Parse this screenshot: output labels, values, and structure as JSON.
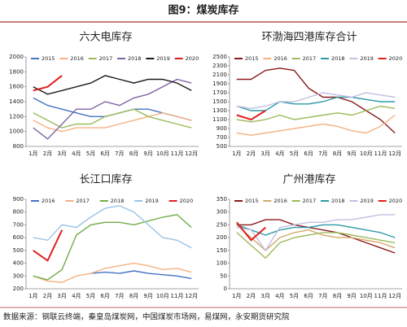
{
  "title": "图9：煤炭库存",
  "source": "数据来源：钢联云终端，秦皇岛煤炭网，中国煤炭市场网，易煤网，永安期货研究院",
  "chart_data": [
    {
      "type": "line",
      "title": "六大电库存",
      "categories": [
        "1月",
        "2月",
        "3月",
        "4月",
        "5月",
        "6月",
        "7月",
        "8月",
        "9月",
        "10月",
        "11月",
        "12月"
      ],
      "ylim": [
        800,
        2000
      ],
      "yticks": [
        800,
        1000,
        1200,
        1400,
        1600,
        1800,
        2000
      ],
      "series": [
        {
          "name": "2015",
          "color": "#4472c4",
          "values": [
            1450,
            1350,
            1300,
            1250,
            1200,
            1200,
            1250,
            1300,
            1300,
            1250,
            1200,
            1150
          ]
        },
        {
          "name": "2016",
          "color": "#f4b183",
          "values": [
            1150,
            1050,
            1000,
            1050,
            1050,
            1050,
            1100,
            1150,
            1200,
            1250,
            1200,
            1150
          ]
        },
        {
          "name": "2017",
          "color": "#9bbb59",
          "values": [
            1250,
            1150,
            1050,
            1100,
            1100,
            1200,
            1250,
            1300,
            1200,
            1150,
            1100,
            1050
          ]
        },
        {
          "name": "2018",
          "color": "#8064a2",
          "values": [
            1050,
            900,
            1100,
            1300,
            1300,
            1400,
            1350,
            1450,
            1500,
            1600,
            1700,
            1650
          ]
        },
        {
          "name": "2019",
          "color": "#1a1a1a",
          "values": [
            1600,
            1500,
            1550,
            1600,
            1650,
            1750,
            1700,
            1650,
            1700,
            1700,
            1650,
            1550
          ]
        },
        {
          "name": "2020",
          "color": "#e02020",
          "values": [
            1550,
            1600,
            1750,
            null,
            null,
            null,
            null,
            null,
            null,
            null,
            null,
            null
          ]
        }
      ]
    },
    {
      "type": "line",
      "title": "环渤海四港库存合计",
      "categories": [
        "1月",
        "2月",
        "3月",
        "4月",
        "5月",
        "6月",
        "7月",
        "8月",
        "9月",
        "10月",
        "11月",
        "12月"
      ],
      "ylim": [
        500,
        2500
      ],
      "yticks": [
        500,
        700,
        900,
        1100,
        1300,
        1500,
        1700,
        1900,
        2100,
        2300,
        2500
      ],
      "series": [
        {
          "name": "2015",
          "color": "#8b1a1a",
          "values": [
            2000,
            2000,
            2200,
            2250,
            2200,
            1800,
            1600,
            1600,
            1500,
            1300,
            1100,
            800
          ]
        },
        {
          "name": "2016",
          "color": "#f4b183",
          "values": [
            800,
            750,
            800,
            850,
            900,
            950,
            1000,
            950,
            850,
            800,
            950,
            1200
          ]
        },
        {
          "name": "2017",
          "color": "#9bbb59",
          "values": [
            1100,
            1050,
            1100,
            1200,
            1100,
            1150,
            1200,
            1250,
            1200,
            1300,
            1400,
            1350
          ]
        },
        {
          "name": "2018",
          "color": "#2e9aa8",
          "values": [
            1400,
            1300,
            1300,
            1500,
            1450,
            1450,
            1500,
            1600,
            1600,
            1550,
            1500,
            1500
          ]
        },
        {
          "name": "2019",
          "color": "#c3bfe2",
          "values": [
            1400,
            1350,
            1400,
            1500,
            1500,
            1600,
            1700,
            1650,
            1600,
            1700,
            1650,
            1600
          ]
        },
        {
          "name": "2020",
          "color": "#e02020",
          "values": [
            1200,
            1100,
            1300,
            null,
            null,
            null,
            null,
            null,
            null,
            null,
            null,
            null
          ]
        }
      ]
    },
    {
      "type": "line",
      "title": "长江口库存",
      "categories": [
        "1月",
        "2月",
        "3月",
        "4月",
        "5月",
        "6月",
        "7月",
        "8月",
        "9月",
        "10月",
        "11月",
        "12月"
      ],
      "ylim": [
        200,
        900
      ],
      "yticks": [
        200,
        300,
        400,
        500,
        600,
        700,
        800,
        900
      ],
      "series": [
        {
          "name": "2016",
          "color": "#4472c4",
          "values": [
            null,
            null,
            null,
            null,
            320,
            330,
            320,
            340,
            320,
            310,
            300,
            280
          ]
        },
        {
          "name": "2017",
          "color": "#f4b183",
          "values": [
            300,
            260,
            250,
            300,
            320,
            360,
            380,
            400,
            380,
            350,
            360,
            330
          ]
        },
        {
          "name": "2018",
          "color": "#70ad47",
          "values": [
            300,
            270,
            350,
            620,
            700,
            720,
            720,
            700,
            730,
            760,
            780,
            680
          ]
        },
        {
          "name": "2019",
          "color": "#9dc3e6",
          "values": [
            600,
            580,
            700,
            680,
            760,
            830,
            850,
            800,
            700,
            600,
            580,
            520
          ]
        },
        {
          "name": "2020",
          "color": "#e02020",
          "values": [
            500,
            420,
            660,
            null,
            null,
            null,
            null,
            null,
            null,
            null,
            null,
            null
          ]
        }
      ]
    },
    {
      "type": "line",
      "title": "广州港库存",
      "categories": [
        "1月",
        "2月",
        "3月",
        "4月",
        "5月",
        "6月",
        "7月",
        "8月",
        "9月",
        "10月",
        "11月",
        "12月"
      ],
      "ylim": [
        0,
        350
      ],
      "yticks": [
        0,
        50,
        100,
        150,
        200,
        250,
        300,
        350
      ],
      "series": [
        {
          "name": "2015",
          "color": "#8b1a1a",
          "values": [
            250,
            250,
            270,
            270,
            250,
            240,
            230,
            220,
            200,
            180,
            160,
            140
          ]
        },
        {
          "name": "2016",
          "color": "#d4a76a",
          "values": [
            250,
            200,
            150,
            200,
            220,
            230,
            210,
            200,
            200,
            190,
            180,
            160
          ]
        },
        {
          "name": "2017",
          "color": "#9bbb59",
          "values": [
            220,
            170,
            120,
            180,
            200,
            210,
            220,
            220,
            210,
            200,
            190,
            180
          ]
        },
        {
          "name": "2018",
          "color": "#2e9aa8",
          "values": [
            250,
            230,
            210,
            230,
            240,
            240,
            250,
            250,
            240,
            230,
            220,
            200
          ]
        },
        {
          "name": "2019",
          "color": "#c3bfe2",
          "values": [
            240,
            230,
            150,
            240,
            250,
            260,
            260,
            270,
            270,
            280,
            290,
            290
          ]
        },
        {
          "name": "2020",
          "color": "#e02020",
          "values": [
            260,
            190,
            240,
            null,
            null,
            null,
            null,
            null,
            null,
            null,
            null,
            null
          ]
        }
      ]
    }
  ]
}
